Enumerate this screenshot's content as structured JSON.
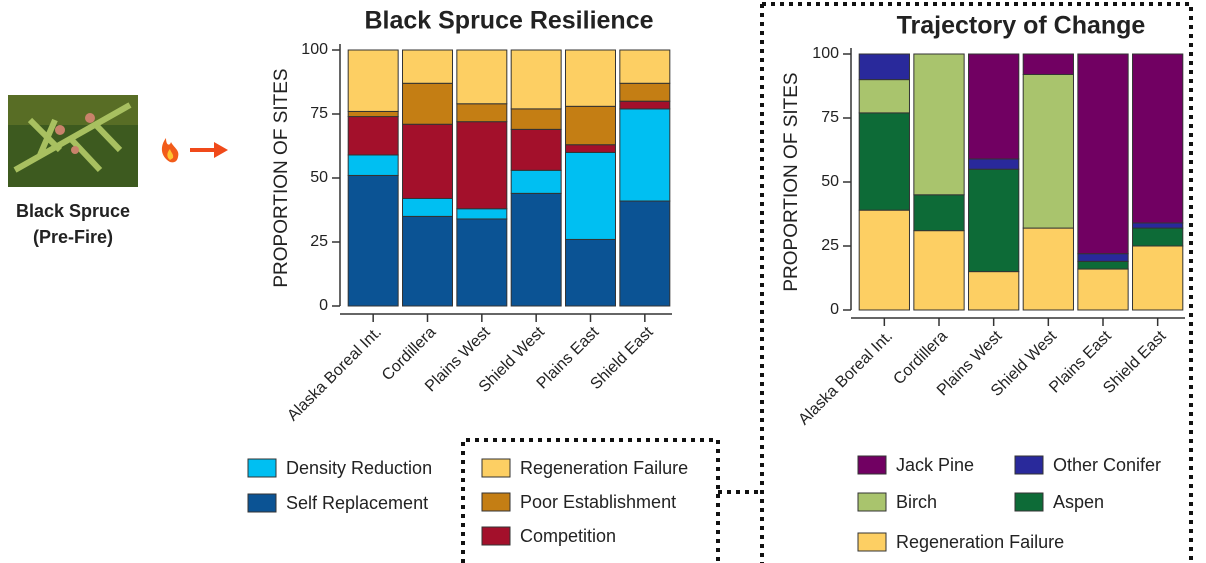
{
  "pre_fire_label": {
    "lines": [
      "Black Spruce",
      "(Pre-Fire)"
    ]
  },
  "chart_data": [
    {
      "type": "stacked_bar",
      "title": "Black Spruce Resilience",
      "y_label": "PROPORTION OF SITES",
      "categories": [
        "Alaska Boreal Int.",
        "Cordillera",
        "Plains West",
        "Shield West",
        "Plains East",
        "Shield East"
      ],
      "ylim": [
        0,
        100
      ],
      "yticks": [
        0,
        25,
        50,
        75,
        100
      ],
      "series": [
        {
          "name": "Self Replacement",
          "color": "#0b5394",
          "values": [
            51,
            35,
            34,
            44,
            26,
            41
          ]
        },
        {
          "name": "Density Reduction",
          "color": "#00bff2",
          "values": [
            8,
            7,
            4,
            9,
            34,
            36
          ]
        },
        {
          "name": "Competition",
          "color": "#a3102b",
          "values": [
            15,
            29,
            34,
            16,
            3,
            3
          ]
        },
        {
          "name": "Poor Establishment",
          "color": "#c47e14",
          "values": [
            2,
            16,
            7,
            8,
            15,
            7
          ]
        },
        {
          "name": "Regeneration Failure",
          "color": "#fdcf63",
          "values": [
            24,
            13,
            21,
            23,
            22,
            13
          ]
        }
      ]
    },
    {
      "type": "stacked_bar",
      "title": "Trajectory of Change",
      "y_label": "PROPORTION OF SITES",
      "categories": [
        "Alaska Boreal Int.",
        "Cordillera",
        "Plains West",
        "Shield West",
        "Plains East",
        "Shield East"
      ],
      "ylim": [
        0,
        100
      ],
      "yticks": [
        0,
        25,
        50,
        75,
        100
      ],
      "series": [
        {
          "name": "Regeneration Failure",
          "color": "#fdcf63",
          "values": [
            39,
            31,
            15,
            32,
            16,
            25
          ]
        },
        {
          "name": "Aspen",
          "color": "#0d6b37",
          "values": [
            38,
            14,
            40,
            0,
            3,
            7
          ]
        },
        {
          "name": "Birch",
          "color": "#a9c46d",
          "values": [
            13,
            55,
            0,
            60,
            0,
            0
          ]
        },
        {
          "name": "Other Conifer",
          "color": "#29299b",
          "values": [
            10,
            0,
            4,
            0,
            3,
            2
          ]
        },
        {
          "name": "Jack Pine",
          "color": "#710062",
          "values": [
            0,
            0,
            41,
            8,
            78,
            66
          ]
        }
      ]
    }
  ]
}
